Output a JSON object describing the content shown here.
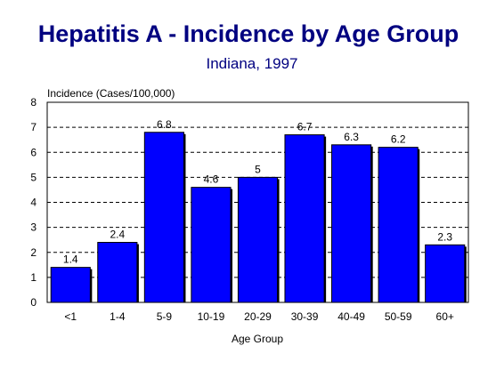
{
  "colors": {
    "bar_fill": "#0000ff",
    "bar_edge": "#000000",
    "bar_shadow": "#000000",
    "title": "#000080",
    "grid": "#000000"
  },
  "chart_data": {
    "type": "bar",
    "title": "Hepatitis A - Incidence by Age Group",
    "subtitle": "Indiana, 1997",
    "ylabel": "Incidence (Cases/100,000)",
    "xlabel": "Age Group",
    "categories": [
      "<1",
      "1-4",
      "5-9",
      "10-19",
      "20-29",
      "30-39",
      "40-49",
      "50-59",
      "60+"
    ],
    "values": [
      1.4,
      2.4,
      6.8,
      4.6,
      5,
      6.7,
      6.3,
      6.2,
      2.3
    ],
    "value_labels": [
      "1.4",
      "2.4",
      "6.8",
      "4.6",
      "5",
      "6.7",
      "6.3",
      "6.2",
      "2.3"
    ],
    "ylim": [
      0,
      8
    ],
    "yticks": [
      "0",
      "1",
      "2",
      "3",
      "4",
      "5",
      "6",
      "7",
      "8"
    ],
    "grid": "horizontal-dashed",
    "legend": "none"
  }
}
